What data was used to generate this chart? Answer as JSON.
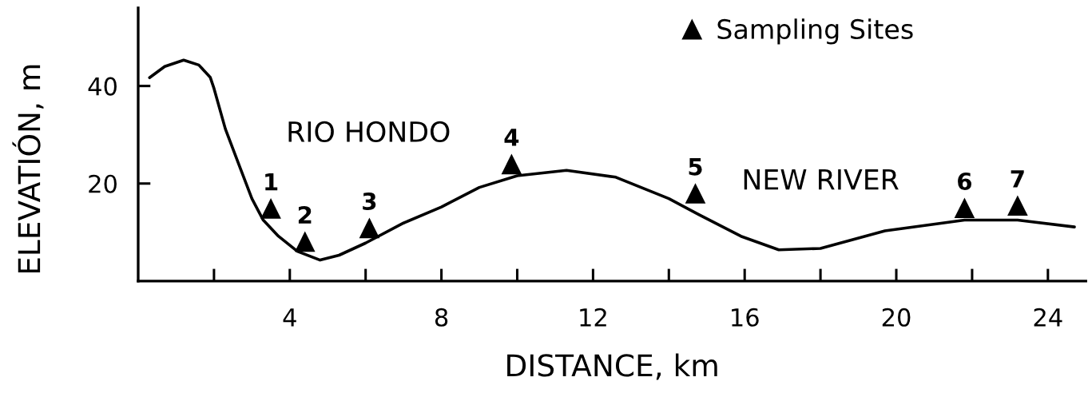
{
  "chart_data": {
    "type": "line",
    "xlabel": "DISTANCE, km",
    "ylabel": "ELEVATIÓN, m",
    "xlim": [
      0,
      25
    ],
    "ylim": [
      0,
      56
    ],
    "xticks": [
      {
        "value": 2,
        "label": null
      },
      4,
      {
        "value": 6,
        "label": null
      },
      8,
      {
        "value": 10,
        "label": null
      },
      12,
      {
        "value": 14,
        "label": null
      },
      16,
      {
        "value": 18,
        "label": null
      },
      20,
      {
        "value": 22,
        "label": null
      },
      24
    ],
    "yticks": [
      20,
      40
    ],
    "grid": false,
    "legend": "top right",
    "series": [
      {
        "color": "#000000",
        "line_style": "solid",
        "marker": "none",
        "x": [
          0.3,
          0.7,
          1.2,
          1.6,
          1.9,
          2.0,
          2.3,
          2.7,
          3.0,
          3.3,
          3.7,
          4.2,
          4.8,
          5.3,
          6.0,
          7.0,
          8.0,
          9.0,
          10.0,
          11.3,
          12.6,
          14.0,
          14.8,
          15.9,
          16.9,
          18.0,
          19.7,
          21.8,
          23.2,
          24.7
        ],
        "values": [
          41.7,
          44.0,
          45.3,
          44.3,
          41.8,
          39.5,
          31.2,
          23.0,
          16.9,
          12.5,
          9.2,
          6.1,
          4.3,
          5.3,
          7.8,
          11.9,
          15.2,
          19.2,
          21.6,
          22.7,
          21.3,
          16.9,
          13.6,
          9.2,
          6.4,
          6.7,
          10.3,
          12.5,
          12.5,
          11.1
        ]
      },
      {
        "type": "scatter",
        "name": "Sampling Sites",
        "color": "#000000",
        "marker": "triangle",
        "x": [
          3.5,
          4.4,
          6.1,
          9.85,
          14.7,
          21.8,
          23.2
        ],
        "values": [
          14.9,
          8.1,
          10.9,
          24.0,
          18.0,
          15.0,
          15.5
        ]
      }
    ],
    "annotations": [
      "RIO HONDO",
      "NEW RIVER",
      {
        "text": "1",
        "x": 3.5,
        "y": 14.9
      },
      {
        "text": "2",
        "x": 4.4,
        "y": 8.1
      },
      {
        "text": "3",
        "x": 6.1,
        "y": 10.9
      },
      {
        "text": "4",
        "x": 9.85,
        "y": 24.0
      },
      {
        "text": "5",
        "x": 14.7,
        "y": 18.0
      },
      {
        "text": "6",
        "x": 21.8,
        "y": 15.0
      },
      {
        "text": "7",
        "x": 23.2,
        "y": 15.5
      }
    ]
  }
}
